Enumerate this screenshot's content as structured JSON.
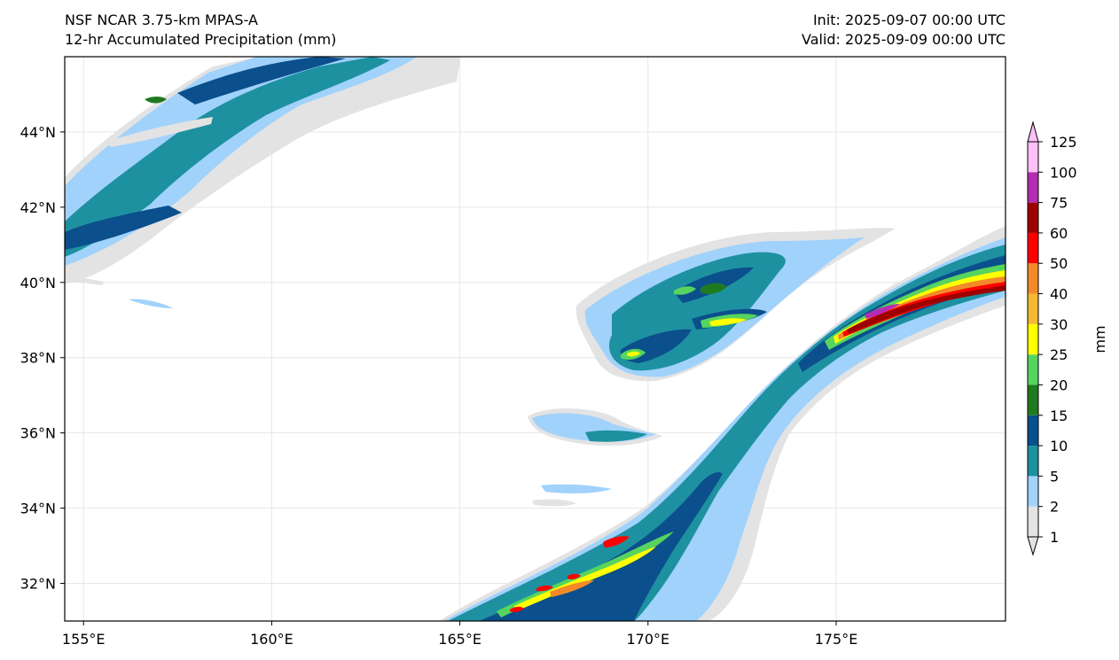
{
  "header": {
    "title": "NSF NCAR 3.75-km MPAS-A",
    "subtitle": "12-hr Accumulated Precipitation (mm)",
    "init": "Init: 2025-09-07 00:00 UTC",
    "valid": "Valid: 2025-09-09 00:00 UTC"
  },
  "map": {
    "lon_range": [
      154.5,
      179.5
    ],
    "lat_range": [
      31.0,
      46.0
    ],
    "x_ticks": [
      {
        "value": 155,
        "label": "155°E"
      },
      {
        "value": 160,
        "label": "160°E"
      },
      {
        "value": 165,
        "label": "165°E"
      },
      {
        "value": 170,
        "label": "170°E"
      },
      {
        "value": 175,
        "label": "175°E"
      }
    ],
    "y_ticks": [
      {
        "value": 32,
        "label": "32°N"
      },
      {
        "value": 34,
        "label": "34°N"
      },
      {
        "value": 36,
        "label": "36°N"
      },
      {
        "value": 38,
        "label": "38°N"
      },
      {
        "value": 40,
        "label": "40°N"
      },
      {
        "value": 42,
        "label": "42°N"
      },
      {
        "value": 44,
        "label": "44°N"
      }
    ]
  },
  "colorbar": {
    "unit_label": "mm",
    "levels": [
      "1",
      "2",
      "5",
      "10",
      "15",
      "20",
      "25",
      "30",
      "40",
      "50",
      "60",
      "75",
      "100",
      "125"
    ],
    "colors": [
      "#e3e3e3",
      "#a0d2fb",
      "#1e91a0",
      "#0b4f8c",
      "#1f7a1f",
      "#56d45e",
      "#ffff00",
      "#f5b930",
      "#f28a2a",
      "#ff0000",
      "#9e0000",
      "#b32db3",
      "#ffc0f8"
    ]
  },
  "colors": {
    "c1": "#e3e3e3",
    "c2": "#a0d2fb",
    "c5": "#1e91a0",
    "c10": "#0b4f8c",
    "c15": "#1f7a1f",
    "c20": "#56d45e",
    "c25": "#ffff00",
    "c30": "#f5b930",
    "c40": "#f28a2a",
    "c50": "#ff0000",
    "c60": "#9e0000",
    "c75": "#b32db3"
  }
}
